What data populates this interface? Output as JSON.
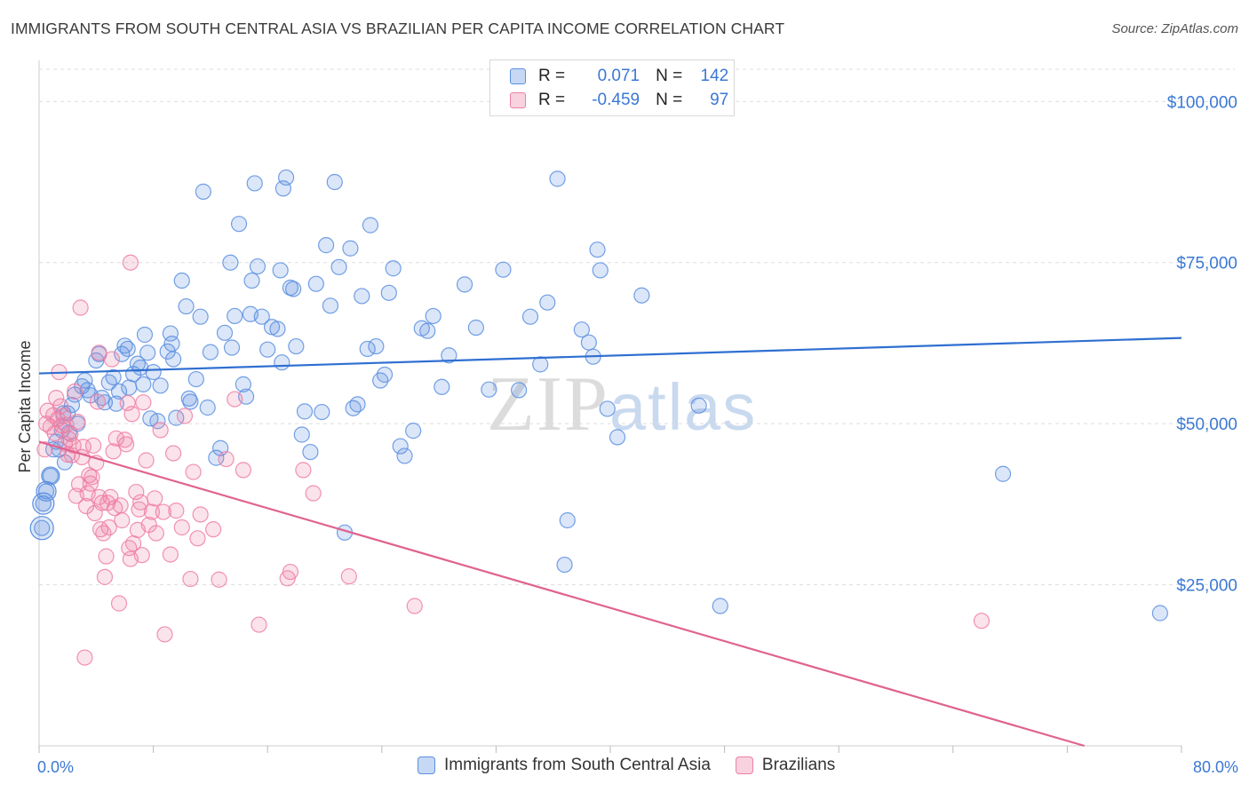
{
  "title": "IMMIGRANTS FROM SOUTH CENTRAL ASIA VS BRAZILIAN PER CAPITA INCOME CORRELATION CHART",
  "source": "Source: ZipAtlas.com",
  "watermark": {
    "zip": "ZIP",
    "atlas": "atlas"
  },
  "legend": {
    "rows": [
      {
        "r_label": "R =",
        "r_value": "0.071",
        "n_label": "N =",
        "n_value": "142",
        "color": "#5b8fe0"
      },
      {
        "r_label": "R =",
        "r_value": "-0.459",
        "n_label": "N =",
        "n_value": "97",
        "color": "#ee7fa5"
      }
    ]
  },
  "bottom_legend": {
    "items": [
      {
        "label": "Immigrants from South Central Asia",
        "color": "#5b8fe0"
      },
      {
        "label": "Brazilians",
        "color": "#ee7fa5"
      }
    ]
  },
  "chart_data": {
    "type": "scatter",
    "title": "IMMIGRANTS FROM SOUTH CENTRAL ASIA VS BRAZILIAN PER CAPITA INCOME CORRELATION CHART",
    "xlabel": "",
    "ylabel": "Per Capita Income",
    "xlim": [
      0,
      80
    ],
    "ylim": [
      0,
      105000
    ],
    "x_tick_labels": [
      "0.0%",
      "80.0%"
    ],
    "y_ticks": [
      25000,
      50000,
      75000,
      100000
    ],
    "y_tick_labels": [
      "$25,000",
      "$50,000",
      "$75,000",
      "$100,000"
    ],
    "grid": true,
    "legend_position": "top-center",
    "series": [
      {
        "name": "Immigrants from South Central Asia",
        "color": "#5b8fe0",
        "trend": {
          "x": [
            0,
            80
          ],
          "y": [
            57800,
            63300
          ]
        },
        "points": [
          [
            0.2,
            33800
          ],
          [
            0.3,
            37600
          ],
          [
            0.5,
            39500
          ],
          [
            0.8,
            41900
          ],
          [
            1.0,
            46000
          ],
          [
            1.2,
            47200
          ],
          [
            1.4,
            46000
          ],
          [
            1.6,
            49000
          ],
          [
            1.7,
            51600
          ],
          [
            1.8,
            44000
          ],
          [
            2.0,
            51600
          ],
          [
            2.1,
            48600
          ],
          [
            2.3,
            52900
          ],
          [
            2.5,
            54500
          ],
          [
            2.7,
            50000
          ],
          [
            3.0,
            55800
          ],
          [
            3.2,
            56700
          ],
          [
            3.4,
            55200
          ],
          [
            3.6,
            54400
          ],
          [
            4.0,
            59800
          ],
          [
            4.2,
            60800
          ],
          [
            4.4,
            54000
          ],
          [
            4.6,
            53300
          ],
          [
            4.9,
            56400
          ],
          [
            5.2,
            57200
          ],
          [
            5.4,
            53100
          ],
          [
            5.6,
            55000
          ],
          [
            5.8,
            60800
          ],
          [
            6.0,
            62100
          ],
          [
            6.2,
            61600
          ],
          [
            6.3,
            55600
          ],
          [
            6.6,
            57700
          ],
          [
            6.9,
            59300
          ],
          [
            7.1,
            58700
          ],
          [
            7.3,
            56100
          ],
          [
            7.4,
            63800
          ],
          [
            7.6,
            61000
          ],
          [
            7.8,
            50800
          ],
          [
            8.0,
            58000
          ],
          [
            8.3,
            50400
          ],
          [
            8.5,
            55900
          ],
          [
            9.0,
            61200
          ],
          [
            9.2,
            64000
          ],
          [
            9.3,
            62400
          ],
          [
            9.4,
            60000
          ],
          [
            9.6,
            50900
          ],
          [
            10.0,
            72200
          ],
          [
            10.3,
            68200
          ],
          [
            10.5,
            53900
          ],
          [
            10.6,
            53400
          ],
          [
            11.0,
            56900
          ],
          [
            11.3,
            66600
          ],
          [
            11.5,
            86000
          ],
          [
            11.8,
            52500
          ],
          [
            12.0,
            61100
          ],
          [
            12.4,
            44700
          ],
          [
            12.7,
            46200
          ],
          [
            13.0,
            64100
          ],
          [
            13.4,
            75000
          ],
          [
            13.7,
            66700
          ],
          [
            14.0,
            81000
          ],
          [
            14.3,
            56100
          ],
          [
            14.5,
            54200
          ],
          [
            14.9,
            72200
          ],
          [
            15.1,
            87300
          ],
          [
            15.3,
            74400
          ],
          [
            15.6,
            66600
          ],
          [
            16.0,
            61500
          ],
          [
            16.3,
            65000
          ],
          [
            16.7,
            64700
          ],
          [
            16.9,
            73800
          ],
          [
            17.0,
            59500
          ],
          [
            17.3,
            88200
          ],
          [
            17.6,
            71100
          ],
          [
            17.8,
            70900
          ],
          [
            18.0,
            62000
          ],
          [
            18.4,
            48300
          ],
          [
            18.6,
            51900
          ],
          [
            19.0,
            45600
          ],
          [
            19.4,
            71700
          ],
          [
            19.8,
            51800
          ],
          [
            20.1,
            77700
          ],
          [
            20.4,
            68300
          ],
          [
            20.7,
            87500
          ],
          [
            21.0,
            74300
          ],
          [
            21.4,
            33100
          ],
          [
            21.8,
            77200
          ],
          [
            22.0,
            52400
          ],
          [
            22.3,
            53000
          ],
          [
            22.6,
            69800
          ],
          [
            23.0,
            61600
          ],
          [
            23.2,
            80800
          ],
          [
            23.6,
            62000
          ],
          [
            23.9,
            56700
          ],
          [
            24.2,
            57600
          ],
          [
            24.5,
            70300
          ],
          [
            25.3,
            46500
          ],
          [
            25.6,
            45000
          ],
          [
            26.2,
            48900
          ],
          [
            26.8,
            64800
          ],
          [
            27.2,
            64400
          ],
          [
            27.6,
            66700
          ],
          [
            28.2,
            55700
          ],
          [
            28.7,
            60600
          ],
          [
            29.8,
            71600
          ],
          [
            31.5,
            55300
          ],
          [
            32.5,
            73900
          ],
          [
            33.6,
            55200
          ],
          [
            34.4,
            66600
          ],
          [
            35.1,
            59200
          ],
          [
            35.6,
            68800
          ],
          [
            36.3,
            88000
          ],
          [
            36.8,
            28100
          ],
          [
            37.0,
            35000
          ],
          [
            38.0,
            64600
          ],
          [
            38.5,
            62600
          ],
          [
            38.8,
            60400
          ],
          [
            39.1,
            77000
          ],
          [
            39.3,
            73800
          ],
          [
            39.8,
            52300
          ],
          [
            40.5,
            47900
          ],
          [
            42.2,
            69900
          ],
          [
            46.2,
            52800
          ],
          [
            47.7,
            21700
          ],
          [
            67.5,
            42200
          ],
          [
            78.5,
            20600
          ],
          [
            13.5,
            61800
          ],
          [
            14.8,
            67000
          ],
          [
            17.1,
            86500
          ],
          [
            24.8,
            74100
          ],
          [
            30.6,
            64900
          ]
        ]
      },
      {
        "name": "Brazilians",
        "color": "#ee7fa5",
        "trend": {
          "x": [
            0,
            73.2
          ],
          "y": [
            47200,
            0
          ]
        },
        "points": [
          [
            0.4,
            46000
          ],
          [
            0.5,
            50000
          ],
          [
            0.6,
            52000
          ],
          [
            0.8,
            49500
          ],
          [
            1.0,
            51300
          ],
          [
            1.1,
            48500
          ],
          [
            1.2,
            54000
          ],
          [
            1.3,
            50700
          ],
          [
            1.5,
            52700
          ],
          [
            1.6,
            49700
          ],
          [
            1.7,
            51200
          ],
          [
            1.8,
            46900
          ],
          [
            1.9,
            49800
          ],
          [
            2.0,
            45200
          ],
          [
            2.1,
            47600
          ],
          [
            2.2,
            48400
          ],
          [
            2.3,
            45100
          ],
          [
            2.4,
            46600
          ],
          [
            2.5,
            55000
          ],
          [
            2.6,
            38800
          ],
          [
            2.7,
            50300
          ],
          [
            2.8,
            40600
          ],
          [
            3.0,
            44800
          ],
          [
            3.1,
            46400
          ],
          [
            3.2,
            13700
          ],
          [
            3.3,
            37200
          ],
          [
            3.4,
            39200
          ],
          [
            3.5,
            42000
          ],
          [
            3.6,
            40700
          ],
          [
            3.7,
            41700
          ],
          [
            3.8,
            46600
          ],
          [
            3.9,
            36100
          ],
          [
            4.0,
            43900
          ],
          [
            4.1,
            53400
          ],
          [
            4.2,
            38600
          ],
          [
            4.3,
            33600
          ],
          [
            4.4,
            37700
          ],
          [
            4.5,
            33000
          ],
          [
            4.6,
            26200
          ],
          [
            4.7,
            29400
          ],
          [
            4.8,
            37700
          ],
          [
            4.9,
            33900
          ],
          [
            5.0,
            38600
          ],
          [
            5.2,
            45700
          ],
          [
            5.3,
            36900
          ],
          [
            5.4,
            47700
          ],
          [
            5.6,
            22100
          ],
          [
            5.7,
            37300
          ],
          [
            5.8,
            35000
          ],
          [
            6.0,
            47500
          ],
          [
            6.1,
            46800
          ],
          [
            6.2,
            53200
          ],
          [
            6.3,
            30700
          ],
          [
            6.4,
            29000
          ],
          [
            6.5,
            51500
          ],
          [
            6.6,
            31400
          ],
          [
            6.8,
            39400
          ],
          [
            6.9,
            33500
          ],
          [
            7.0,
            36700
          ],
          [
            7.1,
            37800
          ],
          [
            7.2,
            29600
          ],
          [
            7.3,
            53300
          ],
          [
            7.5,
            44300
          ],
          [
            7.7,
            34300
          ],
          [
            7.9,
            36300
          ],
          [
            8.1,
            38400
          ],
          [
            8.2,
            33000
          ],
          [
            8.5,
            49000
          ],
          [
            8.7,
            36300
          ],
          [
            8.8,
            17300
          ],
          [
            9.2,
            29700
          ],
          [
            9.4,
            45400
          ],
          [
            9.6,
            36500
          ],
          [
            10.0,
            33900
          ],
          [
            10.2,
            51200
          ],
          [
            10.6,
            25900
          ],
          [
            10.8,
            42500
          ],
          [
            11.1,
            32200
          ],
          [
            11.3,
            35900
          ],
          [
            12.2,
            33600
          ],
          [
            12.6,
            25800
          ],
          [
            13.1,
            44500
          ],
          [
            13.7,
            53800
          ],
          [
            14.3,
            42800
          ],
          [
            15.4,
            18800
          ],
          [
            17.4,
            26000
          ],
          [
            17.6,
            27000
          ],
          [
            18.5,
            42800
          ],
          [
            19.2,
            39200
          ],
          [
            21.7,
            26300
          ],
          [
            26.3,
            21700
          ],
          [
            66.0,
            19400
          ],
          [
            4.2,
            61000
          ],
          [
            6.4,
            75000
          ],
          [
            2.9,
            68000
          ],
          [
            5.1,
            60000
          ],
          [
            1.4,
            58000
          ]
        ]
      }
    ]
  }
}
